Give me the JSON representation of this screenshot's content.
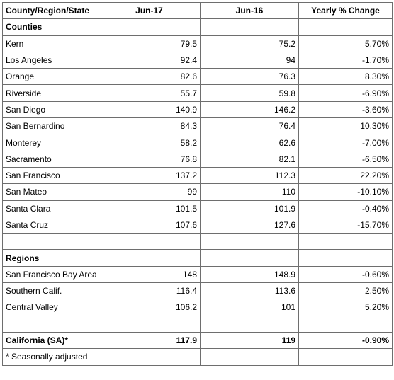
{
  "table": {
    "header": [
      "County/Region/State",
      "Jun-17",
      "Jun-16",
      "Yearly % Change"
    ],
    "sections": [
      {
        "title": "Counties",
        "rows": [
          [
            "Kern",
            "79.5",
            "75.2",
            "5.70%"
          ],
          [
            "Los Angeles",
            "92.4",
            "94",
            "-1.70%"
          ],
          [
            "Orange",
            "82.6",
            "76.3",
            "8.30%"
          ],
          [
            "Riverside",
            "55.7",
            "59.8",
            "-6.90%"
          ],
          [
            "San Diego",
            "140.9",
            "146.2",
            "-3.60%"
          ],
          [
            "San Bernardino",
            "84.3",
            "76.4",
            "10.30%"
          ],
          [
            "Monterey",
            "58.2",
            "62.6",
            "-7.00%"
          ],
          [
            "Sacramento",
            "76.8",
            "82.1",
            "-6.50%"
          ],
          [
            "San Francisco",
            "137.2",
            "112.3",
            "22.20%"
          ],
          [
            "San Mateo",
            "99",
            "110",
            "-10.10%"
          ],
          [
            "Santa Clara",
            "101.5",
            "101.9",
            "-0.40%"
          ],
          [
            "Santa Cruz",
            "107.6",
            "127.6",
            "-15.70%"
          ]
        ]
      },
      {
        "title": "Regions",
        "rows": [
          [
            "San Francisco Bay Area",
            "148",
            "148.9",
            "-0.60%"
          ],
          [
            "Southern Calif.",
            "116.4",
            "113.6",
            "2.50%"
          ],
          [
            "Central Valley",
            "106.2",
            "101",
            "5.20%"
          ]
        ]
      }
    ],
    "total": [
      "California (SA)*",
      "117.9",
      "119",
      "-0.90%"
    ],
    "footnote": "* Seasonally adjusted"
  }
}
